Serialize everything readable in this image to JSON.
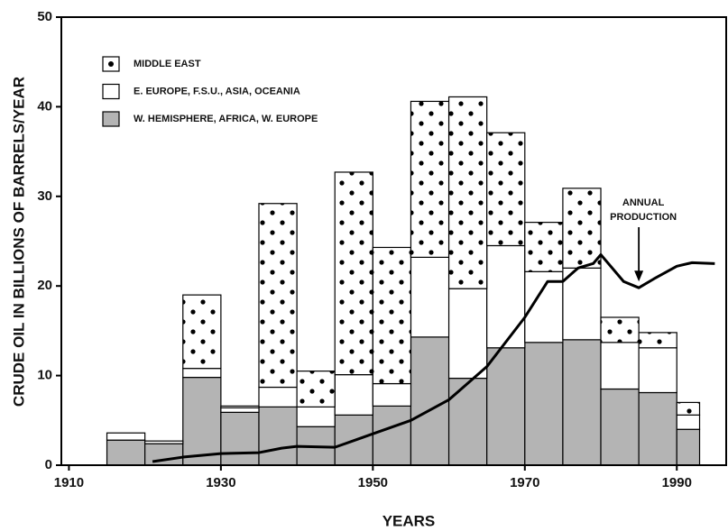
{
  "chart_data": {
    "type": "histogram",
    "x_label": "YEARS",
    "y_label": "CRUDE OIL IN BILLIONS OF BARRELS/YEAR",
    "bins": [
      1915,
      1920,
      1925,
      1930,
      1935,
      1940,
      1945,
      1950,
      1955,
      1960,
      1965,
      1970,
      1975,
      1980,
      1985,
      1990,
      1993
    ],
    "stacked": true,
    "series": [
      {
        "name": "W. HEMISPHERE, AFRICA, W. EUROPE",
        "color": "#b4b4b4",
        "values": [
          2.8,
          2.4,
          9.8,
          5.9,
          6.5,
          4.3,
          5.6,
          6.6,
          14.3,
          9.7,
          13.1,
          13.7,
          14.0,
          8.5,
          8.1,
          4.0
        ]
      },
      {
        "name": "E. EUROPE, F.S.U., ASIA, OCEANIA",
        "color": "#ffffff",
        "values": [
          0.8,
          0.3,
          1.0,
          0.5,
          2.2,
          2.2,
          4.5,
          2.5,
          8.9,
          10.0,
          11.4,
          7.9,
          8.0,
          5.2,
          5.0,
          1.6
        ]
      },
      {
        "name": "MIDDLE EAST",
        "color": "#ffffff",
        "pattern": "dots",
        "values": [
          0,
          0,
          8.2,
          0.2,
          20.5,
          4.0,
          22.6,
          15.2,
          17.4,
          21.4,
          12.6,
          5.5,
          8.9,
          2.8,
          1.7,
          1.4
        ]
      }
    ],
    "line": {
      "color": "#000000",
      "x": [
        1921,
        1925,
        1930,
        1935,
        1938,
        1940,
        1945,
        1948,
        1950,
        1955,
        1960,
        1965,
        1970,
        1973,
        1975,
        1977,
        1979,
        1980,
        1983,
        1985,
        1987,
        1990,
        1992,
        1995
      ],
      "values": [
        0.4,
        0.9,
        1.3,
        1.4,
        1.9,
        2.1,
        2.0,
        2.9,
        3.5,
        5.0,
        7.3,
        11.0,
        16.5,
        20.5,
        20.5,
        22.0,
        22.5,
        23.5,
        20.5,
        19.8,
        20.8,
        22.2,
        22.6,
        22.5
      ]
    },
    "annotation": {
      "lines": [
        "ANNUAL",
        "PRODUCTION"
      ],
      "x": 1985,
      "y": 20.5
    },
    "xlim": [
      1909,
      1996.5
    ],
    "ylim": [
      0,
      50
    ],
    "xticks": [
      1910,
      1930,
      1950,
      1970,
      1990
    ],
    "yticks": [
      0,
      10,
      20,
      30,
      40,
      50
    ],
    "legend": "upper left"
  }
}
